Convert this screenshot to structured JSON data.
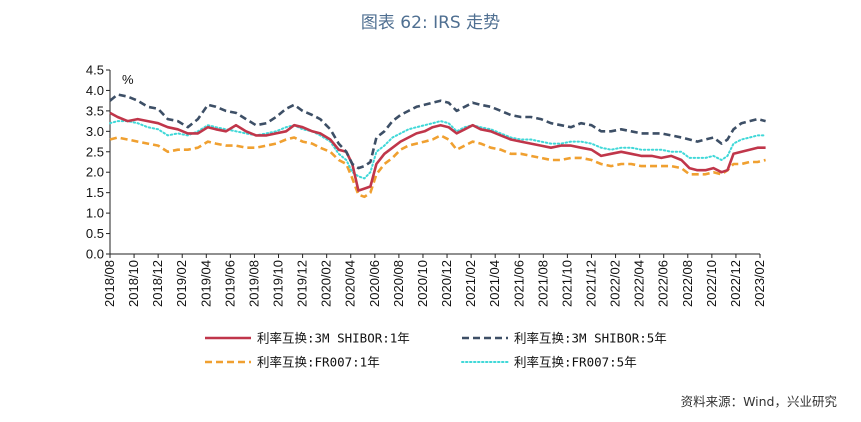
{
  "title": "图表 62: IRS 走势",
  "source": "资料来源：Wind，兴业研究",
  "chart_data": {
    "type": "line",
    "ylabel": "%",
    "ylim": [
      0.0,
      4.5
    ],
    "ytick_labels": [
      "0.0",
      "0.5",
      "1.0",
      "1.5",
      "2.0",
      "2.5",
      "3.0",
      "3.5",
      "4.0",
      "4.5"
    ],
    "xlim": [
      "2018-08",
      "2023-02"
    ],
    "x_tick_labels": [
      "2018/08",
      "2018/10",
      "2018/12",
      "2019/02",
      "2019/04",
      "2019/06",
      "2019/08",
      "2019/10",
      "2019/12",
      "2020/02",
      "2020/04",
      "2020/06",
      "2020/08",
      "2020/10",
      "2020/12",
      "2021/02",
      "2021/04",
      "2021/06",
      "2021/08",
      "2021/10",
      "2021/12",
      "2022/02",
      "2022/04",
      "2022/06",
      "2022/08",
      "2022/10",
      "2022/12",
      "2023/02"
    ],
    "grid": false,
    "legend_position": "bottom",
    "series": [
      {
        "name": "利率互换:3M SHIBOR:1年",
        "color": "#c0364a",
        "style": "solid",
        "x": [
          "2018-08-01",
          "2018-08-20",
          "2018-09-15",
          "2018-10-10",
          "2018-11-05",
          "2018-12-01",
          "2018-12-25",
          "2019-01-20",
          "2019-02-15",
          "2019-03-10",
          "2019-04-05",
          "2019-04-25",
          "2019-05-20",
          "2019-06-15",
          "2019-07-10",
          "2019-08-05",
          "2019-09-01",
          "2019-09-25",
          "2019-10-20",
          "2019-11-10",
          "2019-12-01",
          "2019-12-25",
          "2020-01-15",
          "2020-02-10",
          "2020-03-01",
          "2020-03-20",
          "2020-04-05",
          "2020-04-20",
          "2020-05-05",
          "2020-05-20",
          "2020-06-05",
          "2020-06-25",
          "2020-07-15",
          "2020-08-05",
          "2020-08-25",
          "2020-09-15",
          "2020-10-05",
          "2020-10-25",
          "2020-11-15",
          "2020-12-05",
          "2020-12-25",
          "2021-01-15",
          "2021-02-05",
          "2021-02-25",
          "2021-03-20",
          "2021-04-15",
          "2021-05-10",
          "2021-06-05",
          "2021-06-30",
          "2021-07-25",
          "2021-08-20",
          "2021-09-15",
          "2021-10-10",
          "2021-11-05",
          "2021-12-01",
          "2021-12-25",
          "2022-01-20",
          "2022-02-15",
          "2022-03-10",
          "2022-04-05",
          "2022-05-01",
          "2022-05-25",
          "2022-06-20",
          "2022-07-15",
          "2022-08-05",
          "2022-08-25",
          "2022-09-15",
          "2022-10-05",
          "2022-10-25",
          "2022-11-10",
          "2022-11-25",
          "2022-12-15",
          "2023-01-05",
          "2023-01-25",
          "2023-02-15"
        ],
        "values": [
          3.45,
          3.35,
          3.25,
          3.3,
          3.25,
          3.2,
          3.1,
          3.05,
          2.95,
          2.95,
          3.1,
          3.05,
          3.0,
          3.15,
          3.0,
          2.9,
          2.9,
          2.95,
          3.0,
          3.15,
          3.1,
          3.0,
          2.95,
          2.8,
          2.55,
          2.5,
          2.2,
          1.55,
          1.6,
          1.65,
          2.2,
          2.45,
          2.6,
          2.75,
          2.85,
          2.95,
          3.0,
          3.1,
          3.15,
          3.1,
          2.95,
          3.05,
          3.15,
          3.05,
          3.0,
          2.9,
          2.8,
          2.75,
          2.7,
          2.65,
          2.6,
          2.65,
          2.65,
          2.6,
          2.55,
          2.4,
          2.45,
          2.5,
          2.45,
          2.4,
          2.4,
          2.35,
          2.4,
          2.3,
          2.1,
          2.05,
          2.05,
          2.1,
          2.0,
          2.05,
          2.45,
          2.5,
          2.55,
          2.6,
          2.6
        ]
      },
      {
        "name": "利率互换:3M SHIBOR:5年",
        "color": "#3d4f66",
        "style": "dashed",
        "x": [
          "2018-08-01",
          "2018-08-20",
          "2018-09-15",
          "2018-10-10",
          "2018-11-05",
          "2018-12-01",
          "2018-12-25",
          "2019-01-20",
          "2019-02-15",
          "2019-03-10",
          "2019-04-05",
          "2019-04-25",
          "2019-05-20",
          "2019-06-15",
          "2019-07-10",
          "2019-08-05",
          "2019-09-01",
          "2019-09-25",
          "2019-10-20",
          "2019-11-10",
          "2019-12-01",
          "2019-12-25",
          "2020-01-15",
          "2020-02-10",
          "2020-03-01",
          "2020-03-20",
          "2020-04-05",
          "2020-04-20",
          "2020-05-05",
          "2020-05-20",
          "2020-06-05",
          "2020-06-25",
          "2020-07-15",
          "2020-08-05",
          "2020-08-25",
          "2020-09-15",
          "2020-10-05",
          "2020-10-25",
          "2020-11-15",
          "2020-12-05",
          "2020-12-25",
          "2021-01-15",
          "2021-02-05",
          "2021-02-25",
          "2021-03-20",
          "2021-04-15",
          "2021-05-10",
          "2021-06-05",
          "2021-06-30",
          "2021-07-25",
          "2021-08-20",
          "2021-09-15",
          "2021-10-10",
          "2021-11-05",
          "2021-12-01",
          "2021-12-25",
          "2022-01-20",
          "2022-02-15",
          "2022-03-10",
          "2022-04-05",
          "2022-05-01",
          "2022-05-25",
          "2022-06-20",
          "2022-07-15",
          "2022-08-05",
          "2022-08-25",
          "2022-09-15",
          "2022-10-05",
          "2022-10-25",
          "2022-11-10",
          "2022-11-25",
          "2022-12-15",
          "2023-01-05",
          "2023-01-25",
          "2023-02-15"
        ],
        "values": [
          3.75,
          3.9,
          3.85,
          3.75,
          3.6,
          3.55,
          3.3,
          3.25,
          3.1,
          3.3,
          3.65,
          3.6,
          3.5,
          3.45,
          3.3,
          3.15,
          3.2,
          3.35,
          3.55,
          3.65,
          3.5,
          3.4,
          3.3,
          3.05,
          2.7,
          2.5,
          2.2,
          2.1,
          2.15,
          2.25,
          2.85,
          3.0,
          3.25,
          3.4,
          3.5,
          3.6,
          3.65,
          3.7,
          3.75,
          3.7,
          3.5,
          3.6,
          3.7,
          3.65,
          3.6,
          3.5,
          3.4,
          3.35,
          3.35,
          3.3,
          3.2,
          3.15,
          3.1,
          3.2,
          3.15,
          3.0,
          3.0,
          3.05,
          3.0,
          2.95,
          2.95,
          2.95,
          2.9,
          2.85,
          2.8,
          2.75,
          2.8,
          2.85,
          2.7,
          2.8,
          3.05,
          3.2,
          3.25,
          3.3,
          3.25
        ]
      },
      {
        "name": "利率互换:FR007:1年",
        "color": "#f0a030",
        "style": "dashed",
        "x": [
          "2018-08-01",
          "2018-08-20",
          "2018-09-15",
          "2018-10-10",
          "2018-11-05",
          "2018-12-01",
          "2018-12-25",
          "2019-01-20",
          "2019-02-15",
          "2019-03-10",
          "2019-04-05",
          "2019-04-25",
          "2019-05-20",
          "2019-06-15",
          "2019-07-10",
          "2019-08-05",
          "2019-09-01",
          "2019-09-25",
          "2019-10-20",
          "2019-11-10",
          "2019-12-01",
          "2019-12-25",
          "2020-01-15",
          "2020-02-10",
          "2020-03-01",
          "2020-03-20",
          "2020-04-05",
          "2020-04-20",
          "2020-05-05",
          "2020-05-20",
          "2020-06-05",
          "2020-06-25",
          "2020-07-15",
          "2020-08-05",
          "2020-08-25",
          "2020-09-15",
          "2020-10-05",
          "2020-10-25",
          "2020-11-15",
          "2020-12-05",
          "2020-12-25",
          "2021-01-15",
          "2021-02-05",
          "2021-02-25",
          "2021-03-20",
          "2021-04-15",
          "2021-05-10",
          "2021-06-05",
          "2021-06-30",
          "2021-07-25",
          "2021-08-20",
          "2021-09-15",
          "2021-10-10",
          "2021-11-05",
          "2021-12-01",
          "2021-12-25",
          "2022-01-20",
          "2022-02-15",
          "2022-03-10",
          "2022-04-05",
          "2022-05-01",
          "2022-05-25",
          "2022-06-20",
          "2022-07-15",
          "2022-08-05",
          "2022-08-25",
          "2022-09-15",
          "2022-10-05",
          "2022-10-25",
          "2022-11-10",
          "2022-11-25",
          "2022-12-15",
          "2023-01-05",
          "2023-01-25",
          "2023-02-15"
        ],
        "values": [
          2.8,
          2.85,
          2.8,
          2.75,
          2.7,
          2.65,
          2.5,
          2.55,
          2.55,
          2.6,
          2.75,
          2.7,
          2.65,
          2.65,
          2.6,
          2.6,
          2.65,
          2.7,
          2.8,
          2.85,
          2.75,
          2.7,
          2.6,
          2.5,
          2.3,
          2.2,
          1.85,
          1.45,
          1.4,
          1.5,
          1.95,
          2.2,
          2.35,
          2.55,
          2.65,
          2.7,
          2.75,
          2.8,
          2.9,
          2.8,
          2.55,
          2.65,
          2.75,
          2.7,
          2.6,
          2.55,
          2.45,
          2.45,
          2.4,
          2.35,
          2.3,
          2.3,
          2.35,
          2.35,
          2.3,
          2.2,
          2.15,
          2.2,
          2.2,
          2.15,
          2.15,
          2.15,
          2.15,
          2.1,
          1.95,
          1.95,
          1.95,
          2.0,
          1.95,
          2.05,
          2.2,
          2.2,
          2.25,
          2.25,
          2.3
        ]
      },
      {
        "name": "利率互换:FR007:5年",
        "color": "#40d8d8",
        "style": "dotted",
        "x": [
          "2018-08-01",
          "2018-08-20",
          "2018-09-15",
          "2018-10-10",
          "2018-11-05",
          "2018-12-01",
          "2018-12-25",
          "2019-01-20",
          "2019-02-15",
          "2019-03-10",
          "2019-04-05",
          "2019-04-25",
          "2019-05-20",
          "2019-06-15",
          "2019-07-10",
          "2019-08-05",
          "2019-09-01",
          "2019-09-25",
          "2019-10-20",
          "2019-11-10",
          "2019-12-01",
          "2019-12-25",
          "2020-01-15",
          "2020-02-10",
          "2020-03-01",
          "2020-03-20",
          "2020-04-05",
          "2020-04-20",
          "2020-05-05",
          "2020-05-20",
          "2020-06-05",
          "2020-06-25",
          "2020-07-15",
          "2020-08-05",
          "2020-08-25",
          "2020-09-15",
          "2020-10-05",
          "2020-10-25",
          "2020-11-15",
          "2020-12-05",
          "2020-12-25",
          "2021-01-15",
          "2021-02-05",
          "2021-02-25",
          "2021-03-20",
          "2021-04-15",
          "2021-05-10",
          "2021-06-05",
          "2021-06-30",
          "2021-07-25",
          "2021-08-20",
          "2021-09-15",
          "2021-10-10",
          "2021-11-05",
          "2021-12-01",
          "2021-12-25",
          "2022-01-20",
          "2022-02-15",
          "2022-03-10",
          "2022-04-05",
          "2022-05-01",
          "2022-05-25",
          "2022-06-20",
          "2022-07-15",
          "2022-08-05",
          "2022-08-25",
          "2022-09-15",
          "2022-10-05",
          "2022-10-25",
          "2022-11-10",
          "2022-11-25",
          "2022-12-15",
          "2023-01-05",
          "2023-01-25",
          "2023-02-15"
        ],
        "values": [
          3.2,
          3.25,
          3.25,
          3.2,
          3.1,
          3.05,
          2.9,
          2.95,
          2.9,
          3.0,
          3.15,
          3.1,
          3.05,
          3.0,
          2.95,
          2.9,
          2.95,
          3.0,
          3.1,
          3.15,
          3.05,
          3.0,
          2.9,
          2.75,
          2.45,
          2.3,
          2.0,
          1.9,
          1.85,
          2.0,
          2.5,
          2.65,
          2.85,
          2.95,
          3.05,
          3.1,
          3.15,
          3.2,
          3.25,
          3.2,
          3.0,
          3.1,
          3.15,
          3.1,
          3.05,
          2.95,
          2.85,
          2.8,
          2.8,
          2.75,
          2.7,
          2.7,
          2.75,
          2.75,
          2.7,
          2.6,
          2.55,
          2.6,
          2.6,
          2.55,
          2.55,
          2.55,
          2.5,
          2.5,
          2.35,
          2.35,
          2.35,
          2.4,
          2.3,
          2.4,
          2.7,
          2.8,
          2.85,
          2.9,
          2.9
        ]
      }
    ]
  }
}
